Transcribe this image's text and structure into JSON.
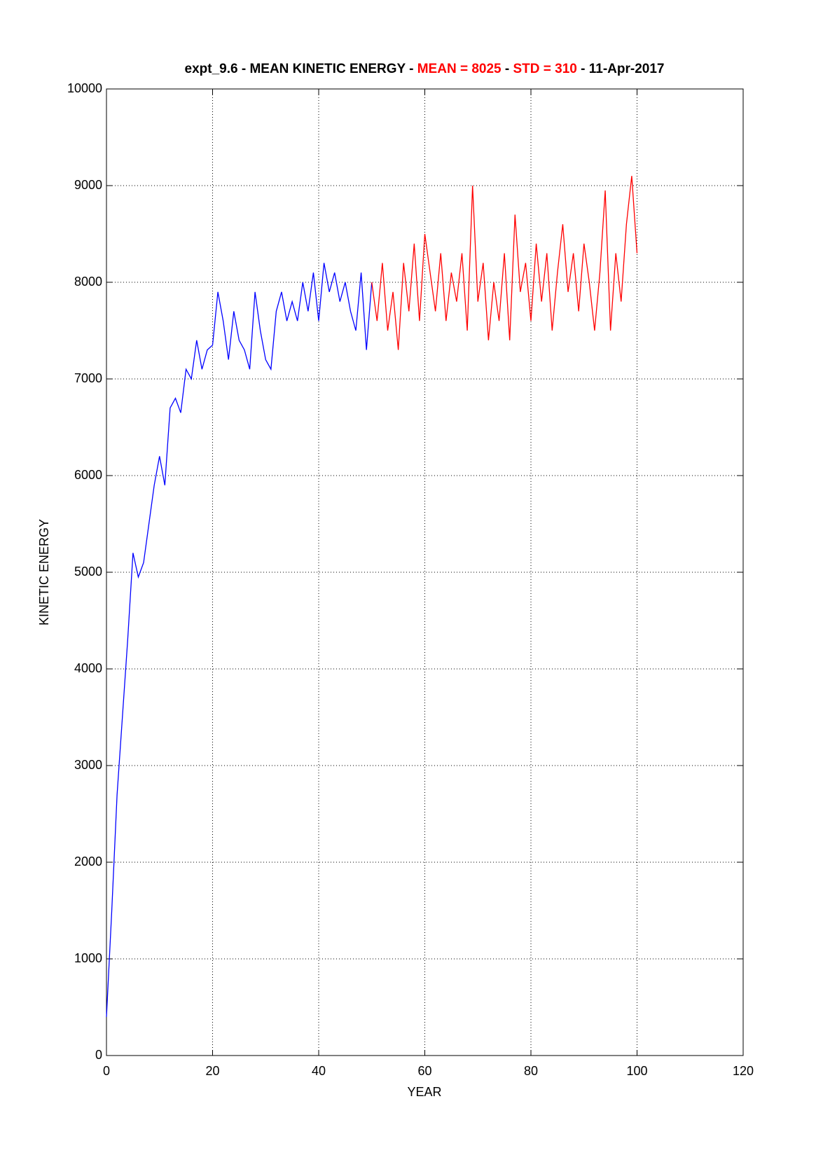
{
  "chart_data": {
    "type": "line",
    "title_segments": [
      {
        "text": "expt_9.6 - MEAN KINETIC ENERGY - ",
        "color": "#000000"
      },
      {
        "text": "MEAN =  8025",
        "color": "#ff0000"
      },
      {
        "text": " - ",
        "color": "#000000"
      },
      {
        "text": "STD =  310",
        "color": "#ff0000"
      },
      {
        "text": " - 11-Apr-2017",
        "color": "#000000"
      }
    ],
    "x_label": "YEAR",
    "y_label": "KINETIC ENERGY",
    "xlim": [
      0,
      120
    ],
    "xticks": [
      0,
      20,
      40,
      60,
      80,
      100,
      120
    ],
    "ylim": [
      0,
      10000
    ],
    "yticks": [
      0,
      1000,
      2000,
      3000,
      4000,
      5000,
      6000,
      7000,
      8000,
      9000,
      10000
    ],
    "grid": true,
    "series": [
      {
        "color": "#0000ff",
        "x": [
          0,
          1,
          2,
          3,
          4,
          5,
          6,
          7,
          8,
          9,
          10,
          11,
          12,
          13,
          14,
          15,
          16,
          17,
          18,
          19,
          20,
          21,
          22,
          23,
          24,
          25,
          26,
          27,
          28,
          29,
          30,
          31,
          32,
          33,
          34,
          35,
          36,
          37,
          38,
          39,
          40,
          41,
          42,
          43,
          44,
          45,
          46,
          47,
          48,
          49,
          50
        ],
        "values": [
          400,
          1500,
          2700,
          3500,
          4300,
          5200,
          4950,
          5100,
          5500,
          5900,
          6200,
          5900,
          6700,
          6800,
          6650,
          7100,
          7000,
          7400,
          7100,
          7300,
          7350,
          7900,
          7600,
          7200,
          7700,
          7400,
          7300,
          7100,
          7900,
          7500,
          7200,
          7100,
          7700,
          7900,
          7600,
          7800,
          7600,
          8000,
          7700,
          8100,
          7600,
          8200,
          7900,
          8100,
          7800,
          8000,
          7700,
          7500,
          8100,
          7300,
          8000
        ]
      },
      {
        "color": "#ff0000",
        "x": [
          50,
          51,
          52,
          53,
          54,
          55,
          56,
          57,
          58,
          59,
          60,
          61,
          62,
          63,
          64,
          65,
          66,
          67,
          68,
          69,
          70,
          71,
          72,
          73,
          74,
          75,
          76,
          77,
          78,
          79,
          80,
          81,
          82,
          83,
          84,
          85,
          86,
          87,
          88,
          89,
          90,
          91,
          92,
          93,
          94,
          95,
          96,
          97,
          98,
          99,
          100
        ],
        "values": [
          8000,
          7600,
          8200,
          7500,
          7900,
          7300,
          8200,
          7700,
          8400,
          7600,
          8500,
          8100,
          7700,
          8300,
          7600,
          8100,
          7800,
          8300,
          7500,
          9000,
          7800,
          8200,
          7400,
          8000,
          7600,
          8300,
          7400,
          8700,
          7900,
          8200,
          7600,
          8400,
          7800,
          8300,
          7500,
          8100,
          8600,
          7900,
          8300,
          7700,
          8400,
          8000,
          7500,
          8100,
          8950,
          7500,
          8300,
          7800,
          8600,
          9100,
          8300
        ]
      }
    ]
  }
}
